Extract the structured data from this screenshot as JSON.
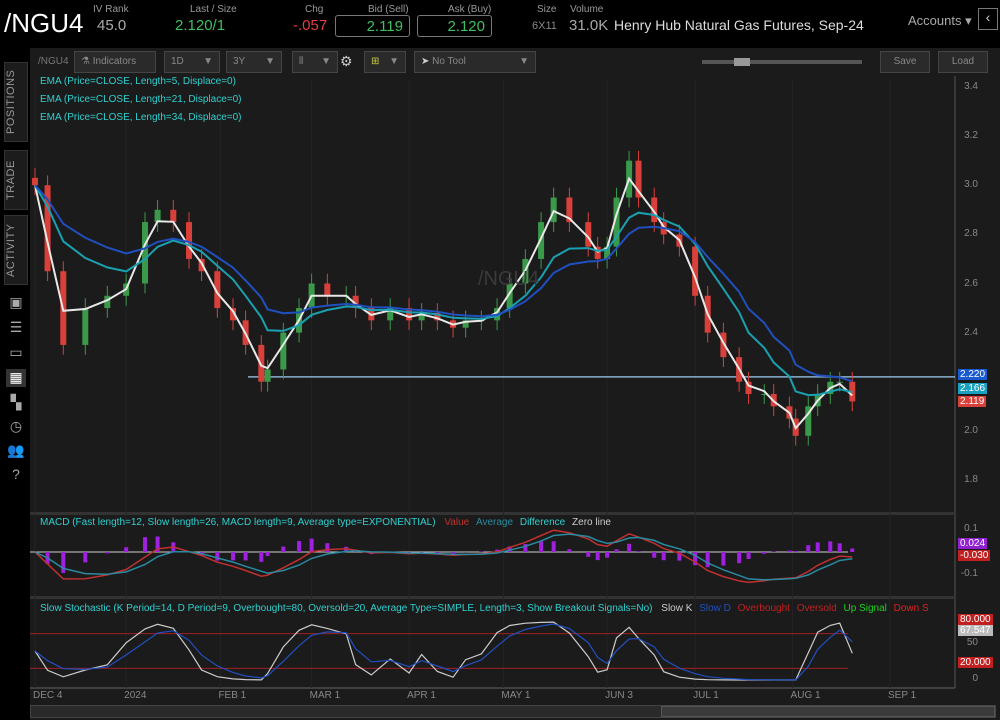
{
  "header": {
    "symbol": "/NGU4",
    "iv_rank_label": "IV Rank",
    "iv_rank": "45.0",
    "last_label": "Last / Size",
    "last": "2.120",
    "size": "/1",
    "chg_label": "Chg",
    "chg": "-.057",
    "bid_label": "Bid (Sell)",
    "bid": "2.119",
    "ask_label": "Ask (Buy)",
    "ask": "2.120",
    "size_label": "Size",
    "size_val": "6X11",
    "volume_label": "Volume",
    "volume": "31.0K",
    "description": "Henry Hub Natural Gas Futures, Sep-24",
    "accounts": "Accounts"
  },
  "toolbar": {
    "symbol": "/NGU4",
    "indicators": "Indicators",
    "aggregation": "1D",
    "range": "3Y",
    "tool": "No Tool",
    "save": "Save",
    "load": "Load"
  },
  "sidebar": {
    "tabs": [
      "POSITIONS",
      "TRADE",
      "ACTIVITY"
    ],
    "icons": [
      "monitor-icon",
      "list-icon",
      "tv-icon",
      "chart-icon",
      "grid-icon",
      "clock-icon",
      "people-icon",
      "help-icon"
    ]
  },
  "legends": {
    "ema": [
      "EMA (Price=CLOSE, Length=5, Displace=0)",
      "EMA (Price=CLOSE, Length=21, Displace=0)",
      "EMA (Price=CLOSE, Length=34, Displace=0)"
    ],
    "macd": "MACD (Fast length=12, Slow length=26, MACD length=9, Average type=EXPONENTIAL)",
    "macd_items": [
      "Value",
      "Average",
      "Difference",
      "Zero line"
    ],
    "stoch": "Slow Stochastic (K Period=14, D Period=9, Overbought=80, Oversold=20, Average Type=SIMPLE, Length=3, Show Breakout Signals=No)",
    "stoch_items": [
      "Slow K",
      "Slow D",
      "Overbought",
      "Oversold",
      "Up Signal",
      "Down S"
    ]
  },
  "watermark": "/NGU4",
  "colors": {
    "up": "#3a9a4a",
    "down": "#d9403a",
    "ema5": "#e8e8e8",
    "ema21": "#1aa0b0",
    "ema34": "#2050c0",
    "macd_value": "#c03030",
    "macd_avg": "#2a8aa0",
    "macd_diff": "#a020e0",
    "stoch_k": "#cccccc",
    "stoch_d": "#2050c0"
  },
  "chart_data": {
    "type": "candlestick",
    "price_ticks": [
      "3.4",
      "3.2",
      "3.0",
      "2.8",
      "2.6",
      "2.4",
      "2.0",
      "1.8"
    ],
    "ylim": [
      1.75,
      3.42
    ],
    "price_tags": [
      "2.220",
      "2.166",
      "2.119"
    ],
    "support_line": 2.22,
    "macd_ticks": [
      "0.1",
      "-0.1"
    ],
    "macd_tags": [
      "0.024",
      "-0.030"
    ],
    "stoch_ticks": [
      "50",
      "0"
    ],
    "stoch_tags": [
      "80.000",
      "67.547",
      "20.000"
    ],
    "date_ticks": [
      [
        "DEC 4",
        "2023-12-04"
      ],
      [
        "2024",
        "2024-01-02"
      ],
      [
        "FEB 1",
        "2024-02-01"
      ],
      [
        "MAR 1",
        "2024-03-01"
      ],
      [
        "APR 1",
        "2024-04-01"
      ],
      [
        "MAY 1",
        "2024-05-01"
      ],
      [
        "JUN 3",
        "2024-06-03"
      ],
      [
        "JUL 1",
        "2024-07-01"
      ],
      [
        "AUG 1",
        "2024-08-01"
      ],
      [
        "SEP 1",
        "2024-09-01"
      ]
    ],
    "closes": [
      [
        "2023-12-04",
        3.0
      ],
      [
        "2023-12-08",
        2.65
      ],
      [
        "2023-12-13",
        2.35
      ],
      [
        "2023-12-20",
        2.5
      ],
      [
        "2023-12-27",
        2.55
      ],
      [
        "2024-01-02",
        2.6
      ],
      [
        "2024-01-08",
        2.85
      ],
      [
        "2024-01-12",
        2.9
      ],
      [
        "2024-01-17",
        2.85
      ],
      [
        "2024-01-22",
        2.7
      ],
      [
        "2024-01-26",
        2.65
      ],
      [
        "2024-01-31",
        2.5
      ],
      [
        "2024-02-05",
        2.45
      ],
      [
        "2024-02-09",
        2.35
      ],
      [
        "2024-02-14",
        2.2
      ],
      [
        "2024-02-16",
        2.25
      ],
      [
        "2024-02-21",
        2.4
      ],
      [
        "2024-02-26",
        2.5
      ],
      [
        "2024-03-01",
        2.6
      ],
      [
        "2024-03-06",
        2.55
      ],
      [
        "2024-03-12",
        2.55
      ],
      [
        "2024-03-15",
        2.5
      ],
      [
        "2024-03-20",
        2.45
      ],
      [
        "2024-03-26",
        2.5
      ],
      [
        "2024-04-01",
        2.45
      ],
      [
        "2024-04-05",
        2.48
      ],
      [
        "2024-04-10",
        2.45
      ],
      [
        "2024-04-15",
        2.42
      ],
      [
        "2024-04-19",
        2.45
      ],
      [
        "2024-04-24",
        2.45
      ],
      [
        "2024-04-29",
        2.5
      ],
      [
        "2024-05-03",
        2.6
      ],
      [
        "2024-05-08",
        2.7
      ],
      [
        "2024-05-13",
        2.85
      ],
      [
        "2024-05-17",
        2.95
      ],
      [
        "2024-05-22",
        2.85
      ],
      [
        "2024-05-28",
        2.75
      ],
      [
        "2024-05-31",
        2.7
      ],
      [
        "2024-06-03",
        2.75
      ],
      [
        "2024-06-06",
        2.95
      ],
      [
        "2024-06-10",
        3.1
      ],
      [
        "2024-06-13",
        2.95
      ],
      [
        "2024-06-18",
        2.85
      ],
      [
        "2024-06-21",
        2.8
      ],
      [
        "2024-06-26",
        2.75
      ],
      [
        "2024-07-01",
        2.55
      ],
      [
        "2024-07-05",
        2.4
      ],
      [
        "2024-07-10",
        2.3
      ],
      [
        "2024-07-15",
        2.2
      ],
      [
        "2024-07-18",
        2.15
      ],
      [
        "2024-07-23",
        2.15
      ],
      [
        "2024-07-26",
        2.1
      ],
      [
        "2024-07-31",
        2.05
      ],
      [
        "2024-08-02",
        1.98
      ],
      [
        "2024-08-06",
        2.1
      ],
      [
        "2024-08-09",
        2.15
      ],
      [
        "2024-08-13",
        2.2
      ],
      [
        "2024-08-16",
        2.2
      ],
      [
        "2024-08-20",
        2.12
      ]
    ]
  }
}
